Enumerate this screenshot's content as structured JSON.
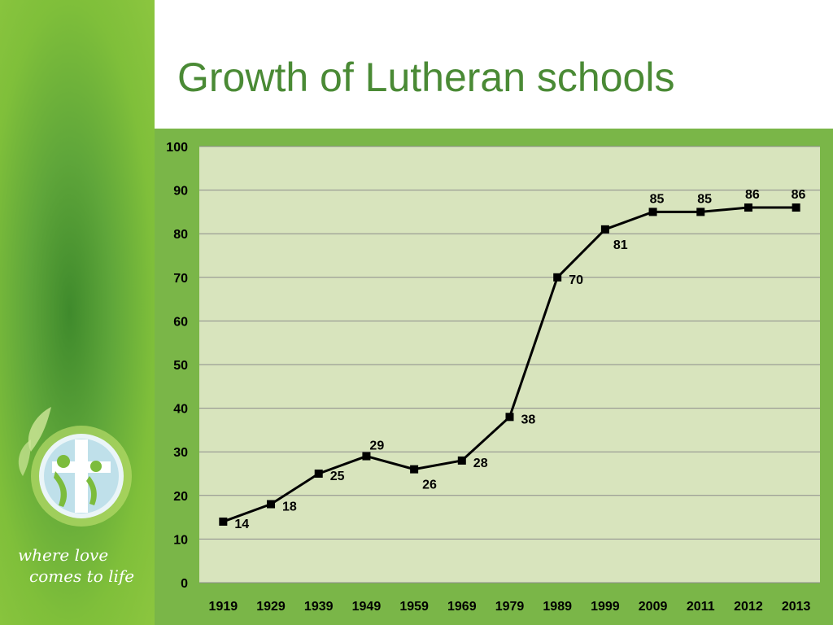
{
  "slide": {
    "title": "Growth of Lutheran schools",
    "tagline_line1": "where love",
    "tagline_line2": "comes to life",
    "logo_icon": "cross-family-icon"
  },
  "colors": {
    "title": "#4a8a35",
    "sidebar": "#7fbf3a",
    "chart_frame": "#7ab648",
    "plot_area": "#d8e4bd",
    "gridline": "#8c8c8c",
    "series": "#000000"
  },
  "chart_data": {
    "type": "line",
    "title": "",
    "xlabel": "",
    "ylabel": "",
    "categories": [
      "1919",
      "1929",
      "1939",
      "1949",
      "1959",
      "1969",
      "1979",
      "1989",
      "1999",
      "2009",
      "2011",
      "2012",
      "2013"
    ],
    "series": [
      {
        "values": [
          14,
          18,
          25,
          29,
          26,
          28,
          38,
          70,
          81,
          85,
          85,
          86,
          86
        ]
      }
    ],
    "ylim": [
      0,
      100
    ],
    "yticks": [
      0,
      10,
      20,
      30,
      40,
      50,
      60,
      70,
      80,
      90,
      100
    ],
    "grid": true,
    "legend": "none",
    "marker": "square"
  }
}
